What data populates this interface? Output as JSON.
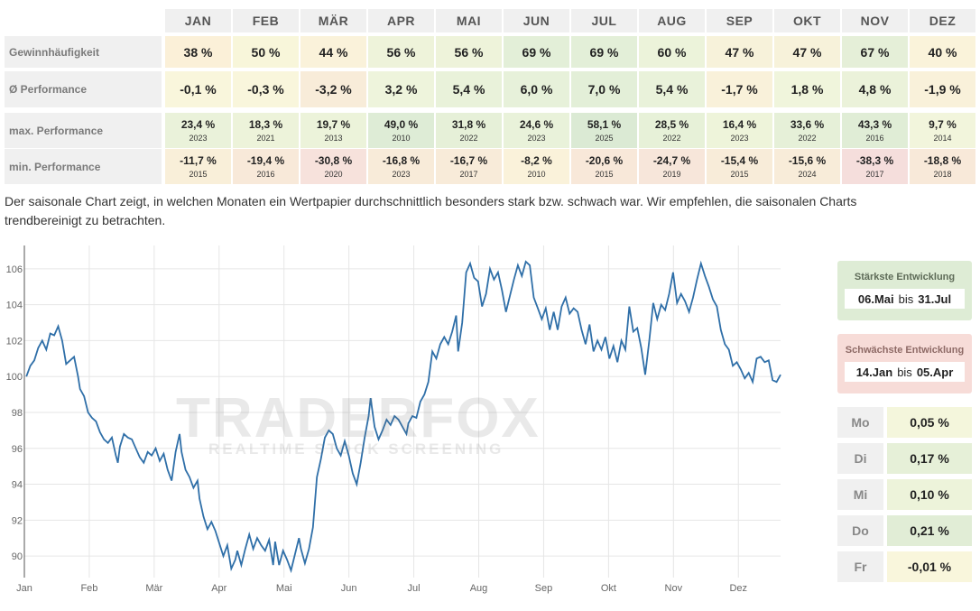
{
  "table": {
    "months": [
      "JAN",
      "FEB",
      "MÄR",
      "APR",
      "MAI",
      "JUN",
      "JUL",
      "AUG",
      "SEP",
      "OKT",
      "NOV",
      "DEZ"
    ],
    "rows": [
      {
        "label": "Gewinnhäufigkeit",
        "values": [
          "38 %",
          "50 %",
          "44 %",
          "56 %",
          "56 %",
          "69 %",
          "69 %",
          "60 %",
          "47 %",
          "47 %",
          "67 %",
          "40 %"
        ],
        "colors": [
          "#fbf0d8",
          "#f8f6da",
          "#faf2da",
          "#eef3da",
          "#eef3da",
          "#e3efd8",
          "#e3efd8",
          "#ecf3da",
          "#f7f2da",
          "#f7f2da",
          "#e5efd8",
          "#faf3da"
        ]
      },
      {
        "label": "Ø Performance",
        "values": [
          "-0,1 %",
          "-0,3 %",
          "-3,2 %",
          "3,2 %",
          "5,4 %",
          "6,0 %",
          "7,0 %",
          "5,4 %",
          "-1,7 %",
          "1,8 %",
          "4,8 %",
          "-1,9 %"
        ],
        "colors": [
          "#f9f6dc",
          "#f9f6dc",
          "#f8ecd9",
          "#eef4dc",
          "#e9f2da",
          "#e7f1da",
          "#e3efd8",
          "#e9f2da",
          "#f9f1da",
          "#f0f5dc",
          "#ebf2da",
          "#f9f1da"
        ]
      },
      {
        "label": "max. Performance",
        "values": [
          "23,4 %",
          "18,3 %",
          "19,7 %",
          "49,0 %",
          "31,8 %",
          "24,6 %",
          "58,1 %",
          "28,5 %",
          "16,4 %",
          "33,6 %",
          "43,3 %",
          "9,7 %"
        ],
        "years": [
          "2023",
          "2021",
          "2013",
          "2010",
          "2022",
          "2023",
          "2025",
          "2022",
          "2023",
          "2022",
          "2016",
          "2014"
        ],
        "colors": [
          "#eaf2da",
          "#edf3da",
          "#ecf3da",
          "#deecd6",
          "#e6f0d8",
          "#e9f2da",
          "#dbead4",
          "#e7f1d8",
          "#eef4da",
          "#e6f0d8",
          "#e0edd6",
          "#f2f5dc"
        ]
      },
      {
        "label": "min. Performance",
        "values": [
          "-11,7 %",
          "-19,4 %",
          "-30,8 %",
          "-16,8 %",
          "-16,7 %",
          "-8,2 %",
          "-20,6 %",
          "-24,7 %",
          "-15,4 %",
          "-15,6 %",
          "-38,3 %",
          "-18,8 %"
        ],
        "years": [
          "2015",
          "2016",
          "2020",
          "2023",
          "2017",
          "2010",
          "2015",
          "2019",
          "2015",
          "2024",
          "2017",
          "2018"
        ],
        "colors": [
          "#f9efd9",
          "#f8e9d9",
          "#f7e2dc",
          "#f8ebd9",
          "#f8ebd9",
          "#faf2da",
          "#f8e8d9",
          "#f7e6da",
          "#f8ecd9",
          "#f8ecd9",
          "#f5dedc",
          "#f8e9d9"
        ]
      }
    ]
  },
  "description": "Der saisonale Chart zeigt, in welchen Monaten ein Wertpapier durchschnittlich besonders stark bzw. schwach war. Wir empfehlen, die saisonalen Charts trendbereinigt zu betrachten.",
  "watermark": {
    "text": "TRADERFOX",
    "sub": "REALTIME STOCK SCREENING"
  },
  "strongest": {
    "title": "Stärkste Entwicklung",
    "from": "06.Mai",
    "joiner": "bis",
    "to": "31.Jul",
    "color": "#deecd5"
  },
  "weakest": {
    "title": "Schwächste Entwicklung",
    "from": "14.Jan",
    "joiner": "bis",
    "to": "05.Apr",
    "color": "#f7dcd8"
  },
  "weekdays": [
    {
      "day": "Mo",
      "value": "0,05 %",
      "color": "#f4f6dc"
    },
    {
      "day": "Di",
      "value": "0,17 %",
      "color": "#e6f0d8"
    },
    {
      "day": "Mi",
      "value": "0,10 %",
      "color": "#edf3da"
    },
    {
      "day": "Do",
      "value": "0,21 %",
      "color": "#e1edd6"
    },
    {
      "day": "Fr",
      "value": "-0,01 %",
      "color": "#f9f6dc"
    }
  ],
  "chart_data": {
    "type": "line",
    "x_unit": "day-of-year",
    "month_labels": [
      "Jan",
      "Feb",
      "Mär",
      "Apr",
      "Mai",
      "Jun",
      "Jul",
      "Aug",
      "Sep",
      "Okt",
      "Nov",
      "Dez"
    ],
    "yticks": [
      90,
      92,
      94,
      96,
      98,
      100,
      102,
      104,
      106
    ],
    "ylim": [
      88.8,
      107.3
    ],
    "grid": true,
    "line_color": "#2f6fa8",
    "points": [
      [
        1,
        100.0
      ],
      [
        3,
        100.6
      ],
      [
        5,
        100.9
      ],
      [
        7,
        101.6
      ],
      [
        9,
        102.0
      ],
      [
        11,
        101.5
      ],
      [
        13,
        102.4
      ],
      [
        15,
        102.3
      ],
      [
        17,
        102.8
      ],
      [
        19,
        102.0
      ],
      [
        21,
        100.7
      ],
      [
        23,
        100.9
      ],
      [
        25,
        101.1
      ],
      [
        27,
        100.0
      ],
      [
        28,
        99.3
      ],
      [
        30,
        98.9
      ],
      [
        32,
        98.0
      ],
      [
        34,
        97.7
      ],
      [
        36,
        97.5
      ],
      [
        38,
        96.9
      ],
      [
        40,
        96.5
      ],
      [
        42,
        96.3
      ],
      [
        44,
        96.6
      ],
      [
        46,
        95.6
      ],
      [
        47,
        95.2
      ],
      [
        48,
        96.1
      ],
      [
        50,
        96.8
      ],
      [
        52,
        96.6
      ],
      [
        54,
        96.5
      ],
      [
        56,
        96.0
      ],
      [
        58,
        95.5
      ],
      [
        60,
        95.2
      ],
      [
        62,
        95.8
      ],
      [
        64,
        95.6
      ],
      [
        66,
        96.0
      ],
      [
        68,
        95.3
      ],
      [
        70,
        95.7
      ],
      [
        72,
        94.8
      ],
      [
        74,
        94.2
      ],
      [
        76,
        95.8
      ],
      [
        78,
        96.8
      ],
      [
        79,
        95.8
      ],
      [
        81,
        94.8
      ],
      [
        83,
        94.4
      ],
      [
        85,
        93.8
      ],
      [
        87,
        94.2
      ],
      [
        88,
        93.2
      ],
      [
        90,
        92.2
      ],
      [
        92,
        91.5
      ],
      [
        94,
        91.9
      ],
      [
        96,
        91.4
      ],
      [
        98,
        90.7
      ],
      [
        100,
        90.0
      ],
      [
        102,
        90.6
      ],
      [
        104,
        89.3
      ],
      [
        106,
        89.8
      ],
      [
        107,
        90.3
      ],
      [
        109,
        89.5
      ],
      [
        111,
        90.4
      ],
      [
        113,
        91.2
      ],
      [
        115,
        90.4
      ],
      [
        117,
        91.0
      ],
      [
        119,
        90.6
      ],
      [
        121,
        90.3
      ],
      [
        123,
        90.9
      ],
      [
        125,
        89.5
      ],
      [
        126,
        90.8
      ],
      [
        128,
        89.5
      ],
      [
        130,
        90.3
      ],
      [
        132,
        89.8
      ],
      [
        134,
        89.2
      ],
      [
        136,
        90.1
      ],
      [
        138,
        91.0
      ],
      [
        139,
        90.4
      ],
      [
        141,
        89.6
      ],
      [
        143,
        90.4
      ],
      [
        145,
        91.6
      ],
      [
        147,
        94.4
      ],
      [
        149,
        95.4
      ],
      [
        151,
        96.6
      ],
      [
        153,
        97.0
      ],
      [
        155,
        96.8
      ],
      [
        157,
        96.0
      ],
      [
        159,
        95.6
      ],
      [
        161,
        96.4
      ],
      [
        163,
        95.6
      ],
      [
        165,
        94.6
      ],
      [
        167,
        94.0
      ],
      [
        169,
        95.2
      ],
      [
        171,
        96.6
      ],
      [
        173,
        97.8
      ],
      [
        174,
        98.8
      ],
      [
        176,
        97.2
      ],
      [
        178,
        96.5
      ],
      [
        180,
        97.0
      ],
      [
        182,
        97.6
      ],
      [
        184,
        97.3
      ],
      [
        186,
        97.8
      ],
      [
        188,
        97.6
      ],
      [
        190,
        97.2
      ],
      [
        192,
        96.8
      ],
      [
        193,
        97.4
      ],
      [
        195,
        97.8
      ],
      [
        197,
        97.7
      ],
      [
        199,
        98.6
      ],
      [
        201,
        99.0
      ],
      [
        203,
        99.7
      ],
      [
        205,
        101.4
      ],
      [
        207,
        101.0
      ],
      [
        209,
        101.8
      ],
      [
        211,
        102.2
      ],
      [
        213,
        101.8
      ],
      [
        215,
        102.5
      ],
      [
        217,
        103.4
      ],
      [
        218,
        101.4
      ],
      [
        220,
        103.0
      ],
      [
        222,
        105.8
      ],
      [
        224,
        106.3
      ],
      [
        226,
        105.5
      ],
      [
        228,
        105.3
      ],
      [
        230,
        103.9
      ],
      [
        232,
        104.6
      ],
      [
        234,
        106.0
      ],
      [
        236,
        105.4
      ],
      [
        238,
        105.8
      ],
      [
        240,
        104.8
      ],
      [
        242,
        103.6
      ],
      [
        244,
        104.5
      ],
      [
        246,
        105.4
      ],
      [
        248,
        106.2
      ],
      [
        250,
        105.6
      ],
      [
        252,
        106.4
      ],
      [
        254,
        106.2
      ],
      [
        256,
        104.4
      ],
      [
        258,
        103.8
      ],
      [
        260,
        103.2
      ],
      [
        262,
        103.8
      ],
      [
        264,
        102.6
      ],
      [
        266,
        103.6
      ],
      [
        268,
        102.6
      ],
      [
        270,
        103.9
      ],
      [
        272,
        104.4
      ],
      [
        274,
        103.5
      ],
      [
        276,
        103.8
      ],
      [
        278,
        103.6
      ],
      [
        280,
        102.6
      ],
      [
        282,
        101.8
      ],
      [
        284,
        102.9
      ],
      [
        286,
        101.4
      ],
      [
        288,
        102.0
      ],
      [
        290,
        101.5
      ],
      [
        292,
        102.2
      ],
      [
        294,
        101.0
      ],
      [
        296,
        101.7
      ],
      [
        298,
        100.8
      ],
      [
        300,
        102.0
      ],
      [
        302,
        101.5
      ],
      [
        304,
        103.9
      ],
      [
        306,
        102.5
      ],
      [
        308,
        102.7
      ],
      [
        310,
        101.6
      ],
      [
        312,
        100.1
      ],
      [
        314,
        102.0
      ],
      [
        316,
        104.1
      ],
      [
        318,
        103.2
      ],
      [
        320,
        104.0
      ],
      [
        322,
        103.7
      ],
      [
        324,
        104.6
      ],
      [
        326,
        105.8
      ],
      [
        328,
        104.1
      ],
      [
        330,
        104.6
      ],
      [
        332,
        104.2
      ],
      [
        334,
        103.6
      ],
      [
        336,
        104.4
      ],
      [
        338,
        105.4
      ],
      [
        340,
        106.3
      ],
      [
        342,
        105.6
      ],
      [
        344,
        105.0
      ],
      [
        346,
        104.3
      ],
      [
        348,
        103.9
      ],
      [
        350,
        102.6
      ],
      [
        352,
        101.8
      ],
      [
        354,
        101.5
      ],
      [
        356,
        100.6
      ],
      [
        358,
        100.8
      ],
      [
        360,
        100.4
      ],
      [
        362,
        99.9
      ],
      [
        364,
        100.2
      ],
      [
        366,
        99.7
      ],
      [
        368,
        101.0
      ],
      [
        370,
        101.1
      ],
      [
        372,
        100.8
      ],
      [
        374,
        100.9
      ],
      [
        376,
        99.8
      ],
      [
        378,
        99.7
      ],
      [
        380,
        100.1
      ]
    ]
  }
}
